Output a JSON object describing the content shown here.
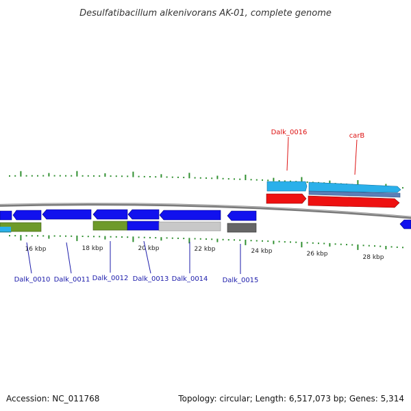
{
  "title": "Desulfatibacillum alkenivorans AK-01, complete genome",
  "footer": {
    "accession": "Accession: NC_011768",
    "summary": "Topology: circular; Length: 6,517,073 bp; Genes: 5,314"
  },
  "colors": {
    "backbone": "#8a8a8a",
    "tick": "#2f8f2f",
    "label_blue": "#1a1aaa",
    "label_red": "#dd1111",
    "gene_blue": "#1111ee",
    "gene_red": "#ee1111",
    "gene_cyan": "#2ab0ea",
    "gene_steel": "#5a7fb8",
    "gene_olive": "#6e9a2a",
    "gene_grey": "#666666",
    "gene_lightgrey": "#c8c8c8"
  },
  "tick_labels": [
    "16 kbp",
    "18 kbp",
    "20 kbp",
    "22 kbp",
    "24 kbp",
    "26 kbp",
    "28 kbp"
  ],
  "gene_labels": [
    {
      "id": "dalk_0010",
      "text": "Dalk_0010",
      "color": "blue"
    },
    {
      "id": "dalk_0011",
      "text": "Dalk_0011",
      "color": "blue"
    },
    {
      "id": "dalk_0012",
      "text": "Dalk_0012",
      "color": "blue"
    },
    {
      "id": "dalk_0013",
      "text": "Dalk_0013",
      "color": "blue"
    },
    {
      "id": "dalk_0014",
      "text": "Dalk_0014",
      "color": "blue"
    },
    {
      "id": "dalk_0015",
      "text": "Dalk_0015",
      "color": "blue"
    },
    {
      "id": "dalk_0016",
      "text": "Dalk_0016",
      "color": "red"
    },
    {
      "id": "carb",
      "text": "carB",
      "color": "red"
    }
  ]
}
